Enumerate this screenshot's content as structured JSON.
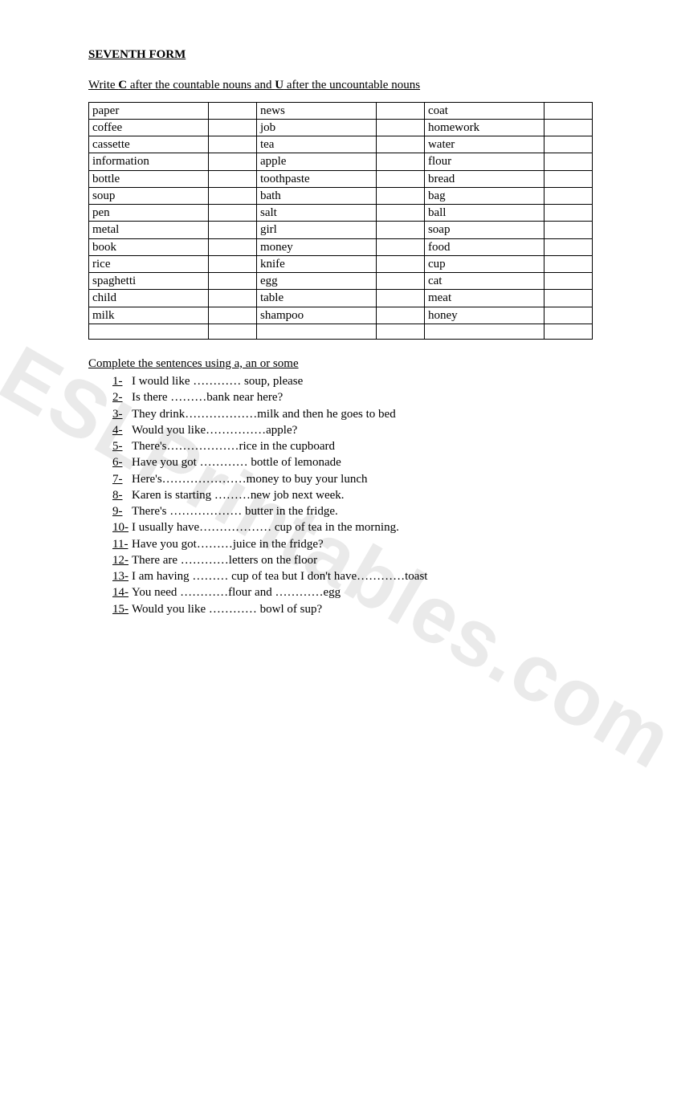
{
  "title": "SEVENTH FORM",
  "instruction_pre": "Write ",
  "instruction_c": "C",
  "instruction_mid": " after the countable nouns and ",
  "instruction_u": "U",
  "instruction_post": " after the uncountable nouns",
  "rows": [
    [
      "paper",
      "",
      "news",
      "",
      "coat",
      ""
    ],
    [
      "coffee",
      "",
      "job",
      "",
      "homework",
      ""
    ],
    [
      "cassette",
      "",
      "tea",
      "",
      "water",
      ""
    ],
    [
      "information",
      "",
      "apple",
      "",
      "flour",
      ""
    ],
    [
      "bottle",
      "",
      "toothpaste",
      "",
      "bread",
      ""
    ],
    [
      "soup",
      "",
      "bath",
      "",
      "bag",
      ""
    ],
    [
      "pen",
      "",
      "salt",
      "",
      "ball",
      ""
    ],
    [
      "metal",
      "",
      "girl",
      "",
      "soap",
      ""
    ],
    [
      "book",
      "",
      "money",
      "",
      "food",
      ""
    ],
    [
      "rice",
      "",
      "knife",
      "",
      "cup",
      ""
    ],
    [
      "spaghetti",
      "",
      "egg",
      "",
      "cat",
      ""
    ],
    [
      "child",
      "",
      "table",
      "",
      "meat",
      ""
    ],
    [
      "milk",
      "",
      "shampoo",
      "",
      "honey",
      ""
    ],
    [
      "",
      "",
      "",
      "",
      "",
      ""
    ]
  ],
  "section2": "Complete the sentences using a, an or some",
  "questions": [
    {
      "n": "1-",
      "t": "I would like ………… soup, please"
    },
    {
      "n": "2-",
      "t": "Is there ………bank near here?"
    },
    {
      "n": "3-",
      "t": "They drink………………milk and then he goes to bed"
    },
    {
      "n": "4-",
      "t": "Would you like……………apple?"
    },
    {
      "n": "5-",
      "t": "There's………………rice in the cupboard"
    },
    {
      "n": "6-",
      "t": "Have you got ………… bottle of lemonade"
    },
    {
      "n": "7-",
      "t": "Here's…………………money to buy your lunch"
    },
    {
      "n": "8-",
      "t": "Karen is starting ………new job next week."
    },
    {
      "n": "9-",
      "t": "There's ……………… butter in the fridge."
    },
    {
      "n": "10-",
      "t": "I usually have……………… cup of tea in the morning."
    },
    {
      "n": "11-",
      "t": "Have you got………juice in the fridge?"
    },
    {
      "n": "12-",
      "t": "There are …………letters on the floor"
    },
    {
      "n": "13-",
      "t": "I am having ……… cup of tea but I don't have…………toast"
    },
    {
      "n": "14-",
      "t": "You need …………flour and …………egg"
    },
    {
      "n": "15-",
      "t": "Would you like ………… bowl of sup?"
    }
  ],
  "watermark": "ESLPrintables.com"
}
